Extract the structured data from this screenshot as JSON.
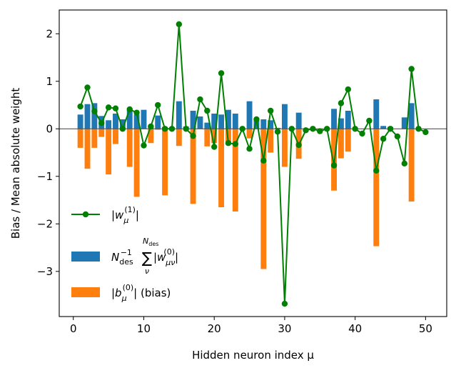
{
  "chart_data": {
    "type": "bar",
    "xlabel": "Hidden neuron index μ",
    "ylabel": "Bias / Mean absolute weight",
    "xlim": [
      -2,
      53
    ],
    "ylim": [
      -3.95,
      2.5
    ],
    "x_ticks": [
      0,
      10,
      20,
      30,
      40,
      50
    ],
    "y_ticks": [
      -3,
      -2,
      -1,
      0,
      1,
      2
    ],
    "grid": false,
    "zero_line": true,
    "legend_position": "lower-left",
    "x": [
      1,
      2,
      3,
      4,
      5,
      6,
      7,
      8,
      9,
      10,
      11,
      12,
      13,
      14,
      15,
      16,
      17,
      18,
      19,
      20,
      21,
      22,
      23,
      24,
      25,
      26,
      27,
      28,
      29,
      30,
      31,
      32,
      33,
      34,
      35,
      36,
      37,
      38,
      39,
      40,
      41,
      42,
      43,
      44,
      45,
      46,
      47,
      48,
      49,
      50
    ],
    "series": [
      {
        "key": "mean_abs_weight",
        "kind": "bar",
        "color": "#1f77b4",
        "legend": {
          "lead": "N",
          "lead_sub": "des",
          "lead_sup": "−1",
          "sum_top": "N",
          "sum_top_sub": "des",
          "sum": "∑",
          "sum_bottom": "ν",
          "body": "|w",
          "body_sub": "μν",
          "body_sup": "(0)",
          "tail": "|"
        },
        "values": [
          0.3,
          0.52,
          0.54,
          0.27,
          0.18,
          0.32,
          0.2,
          0.42,
          0.3,
          0.4,
          0.06,
          0.28,
          0.04,
          0.03,
          0.58,
          0.05,
          0.38,
          0.26,
          0.13,
          0.32,
          0.3,
          0.4,
          0.32,
          0.0,
          0.58,
          0.2,
          0.2,
          0.18,
          0.02,
          0.52,
          0.02,
          0.34,
          0.0,
          0.0,
          0.0,
          0.0,
          0.42,
          0.22,
          0.38,
          0.0,
          0.0,
          0.0,
          0.62,
          0.06,
          0.04,
          0.0,
          0.24,
          0.54,
          0.0,
          0.0
        ]
      },
      {
        "key": "bias",
        "kind": "bar",
        "color": "#ff7f0e",
        "legend": {
          "pre": "|b",
          "sub": "μ",
          "sup": "(0)",
          "post": "| (bias)"
        },
        "values": [
          -0.4,
          -0.84,
          -0.4,
          -0.17,
          -0.96,
          -0.32,
          0.0,
          -0.8,
          -1.43,
          0.0,
          -0.3,
          -0.02,
          -1.4,
          0.0,
          -0.36,
          0.0,
          -1.58,
          0.0,
          -0.37,
          -0.3,
          -1.65,
          -0.3,
          -1.74,
          0.0,
          -0.2,
          0.0,
          -2.95,
          -0.5,
          0.0,
          -0.8,
          0.0,
          -0.63,
          0.0,
          0.0,
          0.0,
          0.0,
          -1.3,
          -0.62,
          -0.48,
          0.0,
          0.0,
          0.0,
          -2.47,
          0.0,
          0.0,
          0.0,
          0.0,
          -1.53,
          0.0,
          0.0
        ]
      },
      {
        "key": "output_weight",
        "kind": "line",
        "color": "#008000",
        "legend": {
          "pre": "|w",
          "sub": "μ",
          "sup": "(1)",
          "post": "|"
        },
        "values": [
          0.47,
          0.87,
          0.37,
          0.12,
          0.45,
          0.43,
          0.0,
          0.41,
          0.34,
          -0.35,
          0.05,
          0.5,
          0.0,
          0.0,
          2.2,
          0.0,
          -0.15,
          0.62,
          0.38,
          -0.38,
          1.17,
          -0.3,
          -0.32,
          0.0,
          -0.42,
          0.2,
          -0.67,
          0.38,
          -0.06,
          -3.68,
          0.0,
          -0.34,
          -0.03,
          0.0,
          -0.05,
          0.0,
          -0.77,
          0.54,
          0.83,
          0.0,
          -0.1,
          0.17,
          -0.88,
          -0.21,
          0.0,
          -0.16,
          -0.73,
          1.26,
          0.0,
          -0.07
        ]
      }
    ]
  }
}
